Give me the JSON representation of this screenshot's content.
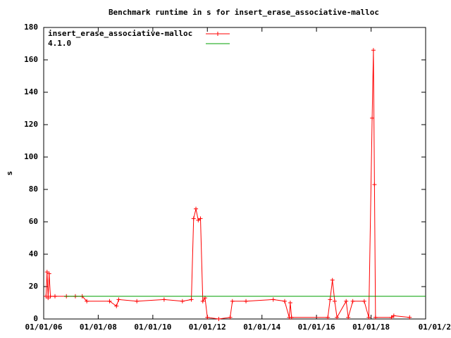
{
  "chart_data": {
    "type": "line",
    "title": "Benchmark runtime in s for insert_erase_associative-malloc",
    "y_label": "s",
    "legend": "top-left",
    "xlim": [
      "2006-01-01",
      "2020-01-01"
    ],
    "xticks": [
      {
        "value": "2006-01-01",
        "label": "01/01/06"
      },
      {
        "value": "2008-01-01",
        "label": "01/01/08"
      },
      {
        "value": "2010-01-01",
        "label": "01/01/10"
      },
      {
        "value": "2012-01-01",
        "label": "01/01/12"
      },
      {
        "value": "2014-01-01",
        "label": "01/01/14"
      },
      {
        "value": "2016-01-01",
        "label": "01/01/16"
      },
      {
        "value": "2018-01-01",
        "label": "01/01/18"
      },
      {
        "value": "2020-01-01",
        "label": "01/01/2"
      }
    ],
    "ylim": [
      0,
      180
    ],
    "yticks": [
      0,
      20,
      40,
      60,
      80,
      100,
      120,
      140,
      160,
      180
    ],
    "series": [
      {
        "name": "insert_erase_associative-malloc",
        "color": "#ff0000",
        "markers": true,
        "x": [
          "2006-02-01",
          "2006-02-15",
          "2006-03-01",
          "2006-03-15",
          "2006-04-01",
          "2006-06-01",
          "2006-11-01",
          "2007-03-01",
          "2007-06-01",
          "2007-08-01",
          "2008-06-01",
          "2008-09-01",
          "2008-10-01",
          "2009-06-01",
          "2010-06-01",
          "2011-02-01",
          "2011-06-01",
          "2011-07-01",
          "2011-08-01",
          "2011-09-01",
          "2011-10-01",
          "2011-11-01",
          "2011-12-01",
          "2012-01-01",
          "2012-06-01",
          "2012-11-01",
          "2012-12-01",
          "2013-06-01",
          "2014-06-01",
          "2014-11-01",
          "2015-01-01",
          "2015-01-15",
          "2015-02-01",
          "2016-06-01",
          "2016-07-01",
          "2016-08-01",
          "2016-09-01",
          "2016-10-01",
          "2017-02-01",
          "2017-03-01",
          "2017-05-01",
          "2017-10-01",
          "2017-12-01",
          "2018-01-15",
          "2018-02-01",
          "2018-02-15",
          "2018-03-01",
          "2018-10-01",
          "2018-11-01",
          "2019-06-01"
        ],
        "values": [
          14,
          29,
          13,
          28,
          14,
          14,
          14,
          14,
          14,
          11,
          11,
          8,
          12,
          11,
          12,
          11,
          12,
          62,
          68,
          61,
          62,
          11,
          13,
          1,
          0,
          1,
          11,
          11,
          12,
          11,
          1,
          10,
          1,
          1,
          12,
          24,
          11,
          1,
          11,
          1,
          11,
          11,
          1,
          124,
          166,
          83,
          1,
          1,
          2,
          1
        ]
      },
      {
        "name": "4.1.0",
        "color": "#00a000",
        "markers": false,
        "x": [
          "2006-10-01",
          "2020-01-01"
        ],
        "values": [
          14,
          14
        ]
      }
    ]
  }
}
